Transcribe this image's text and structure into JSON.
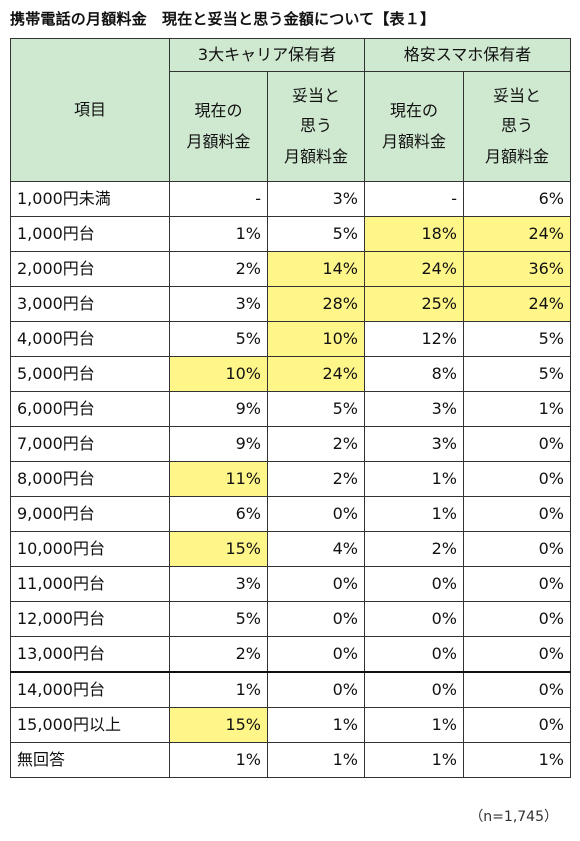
{
  "title": "携帯電話の月額料金　現在と妥当と思う金額について【表１】",
  "header": {
    "item_label": "項目",
    "group_carrier": "3大キャリア保有者",
    "group_mvno": "格安スマホ保有者",
    "sub_current": "現在の\n月額料金",
    "sub_fair": "妥当と\n思う\n月額料金"
  },
  "table_rows": [
    {
      "label": "1,000円未満",
      "values": [
        "-",
        "3%",
        "-",
        "6%"
      ],
      "highlight": [
        false,
        false,
        false,
        false
      ]
    },
    {
      "label": "1,000円台",
      "values": [
        "1%",
        "5%",
        "18%",
        "24%"
      ],
      "highlight": [
        false,
        false,
        true,
        true
      ]
    },
    {
      "label": "2,000円台",
      "values": [
        "2%",
        "14%",
        "24%",
        "36%"
      ],
      "highlight": [
        false,
        true,
        true,
        true
      ]
    },
    {
      "label": "3,000円台",
      "values": [
        "3%",
        "28%",
        "25%",
        "24%"
      ],
      "highlight": [
        false,
        true,
        true,
        true
      ]
    },
    {
      "label": "4,000円台",
      "values": [
        "5%",
        "10%",
        "12%",
        "5%"
      ],
      "highlight": [
        false,
        true,
        false,
        false
      ]
    },
    {
      "label": "5,000円台",
      "values": [
        "10%",
        "24%",
        "8%",
        "5%"
      ],
      "highlight": [
        true,
        true,
        false,
        false
      ]
    },
    {
      "label": "6,000円台",
      "values": [
        "9%",
        "5%",
        "3%",
        "1%"
      ],
      "highlight": [
        false,
        false,
        false,
        false
      ]
    },
    {
      "label": "7,000円台",
      "values": [
        "9%",
        "2%",
        "3%",
        "0%"
      ],
      "highlight": [
        false,
        false,
        false,
        false
      ]
    },
    {
      "label": "8,000円台",
      "values": [
        "11%",
        "2%",
        "1%",
        "0%"
      ],
      "highlight": [
        true,
        false,
        false,
        false
      ]
    },
    {
      "label": "9,000円台",
      "values": [
        "6%",
        "0%",
        "1%",
        "0%"
      ],
      "highlight": [
        false,
        false,
        false,
        false
      ]
    },
    {
      "label": "10,000円台",
      "values": [
        "15%",
        "4%",
        "2%",
        "0%"
      ],
      "highlight": [
        true,
        false,
        false,
        false
      ]
    },
    {
      "label": "11,000円台",
      "values": [
        "3%",
        "0%",
        "0%",
        "0%"
      ],
      "highlight": [
        false,
        false,
        false,
        false
      ]
    },
    {
      "label": "12,000円台",
      "values": [
        "5%",
        "0%",
        "0%",
        "0%"
      ],
      "highlight": [
        false,
        false,
        false,
        false
      ]
    },
    {
      "label": "13,000円台",
      "values": [
        "2%",
        "0%",
        "0%",
        "0%"
      ],
      "highlight": [
        false,
        false,
        false,
        false
      ]
    },
    {
      "label": "14,000円台",
      "values": [
        "1%",
        "0%",
        "0%",
        "0%"
      ],
      "highlight": [
        false,
        false,
        false,
        false
      ]
    },
    {
      "label": "15,000円以上",
      "values": [
        "15%",
        "1%",
        "1%",
        "0%"
      ],
      "highlight": [
        true,
        false,
        false,
        false
      ]
    },
    {
      "label": "無回答",
      "values": [
        "1%",
        "1%",
        "1%",
        "1%"
      ],
      "highlight": [
        false,
        false,
        false,
        false
      ]
    }
  ],
  "highlight_color": "#fff68a",
  "header_color": "#cfe8d0",
  "sample_note": "（n=1,745）"
}
